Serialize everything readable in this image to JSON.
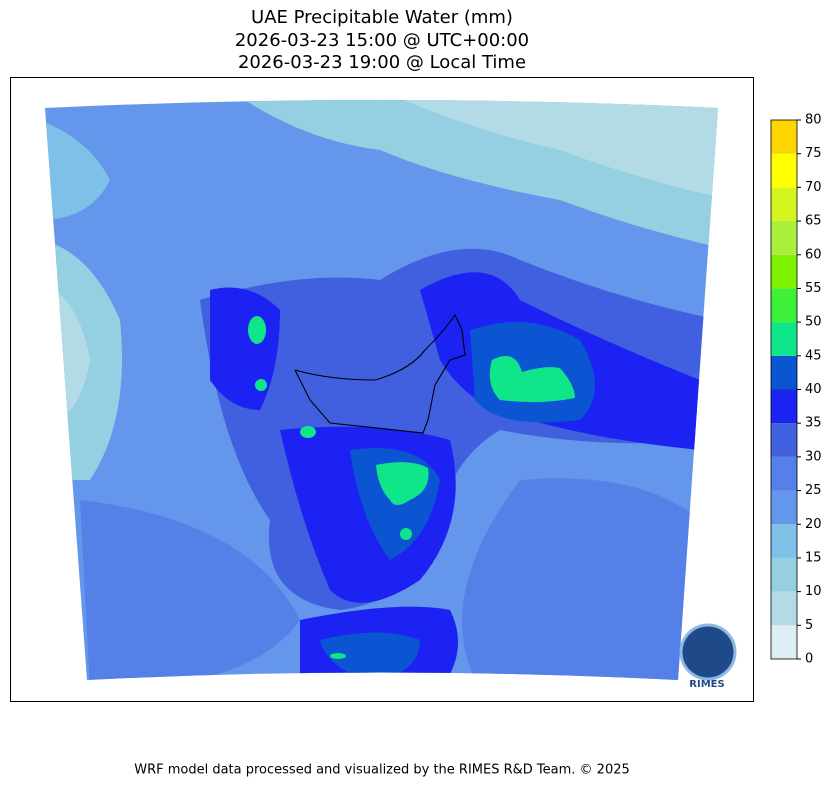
{
  "header": {
    "title_lines": [
      "UAE Precipitable Water (mm)",
      "2026-03-23 15:00 @ UTC+00:00",
      "2026-03-23 19:00 @ Local Time"
    ]
  },
  "colorbar": {
    "levels": [
      0,
      5,
      10,
      15,
      20,
      25,
      30,
      35,
      40,
      45,
      50,
      55,
      60,
      65,
      70,
      75,
      80
    ],
    "colors": [
      "#deedf4",
      "#b3dbe6",
      "#94d0e2",
      "#7fc0e8",
      "#6496ec",
      "#5580e8",
      "#4060e0",
      "#1c22f2",
      "#0b55d2",
      "#0fe68a",
      "#3ef03a",
      "#7cf200",
      "#a9f03c",
      "#d5f51e",
      "#ffff00",
      "#ffd500"
    ]
  },
  "logo": {
    "text": "RIMES"
  },
  "footer": {
    "text": "WRF model data processed and visualized by the RIMES R&D Team. © 2025"
  }
}
